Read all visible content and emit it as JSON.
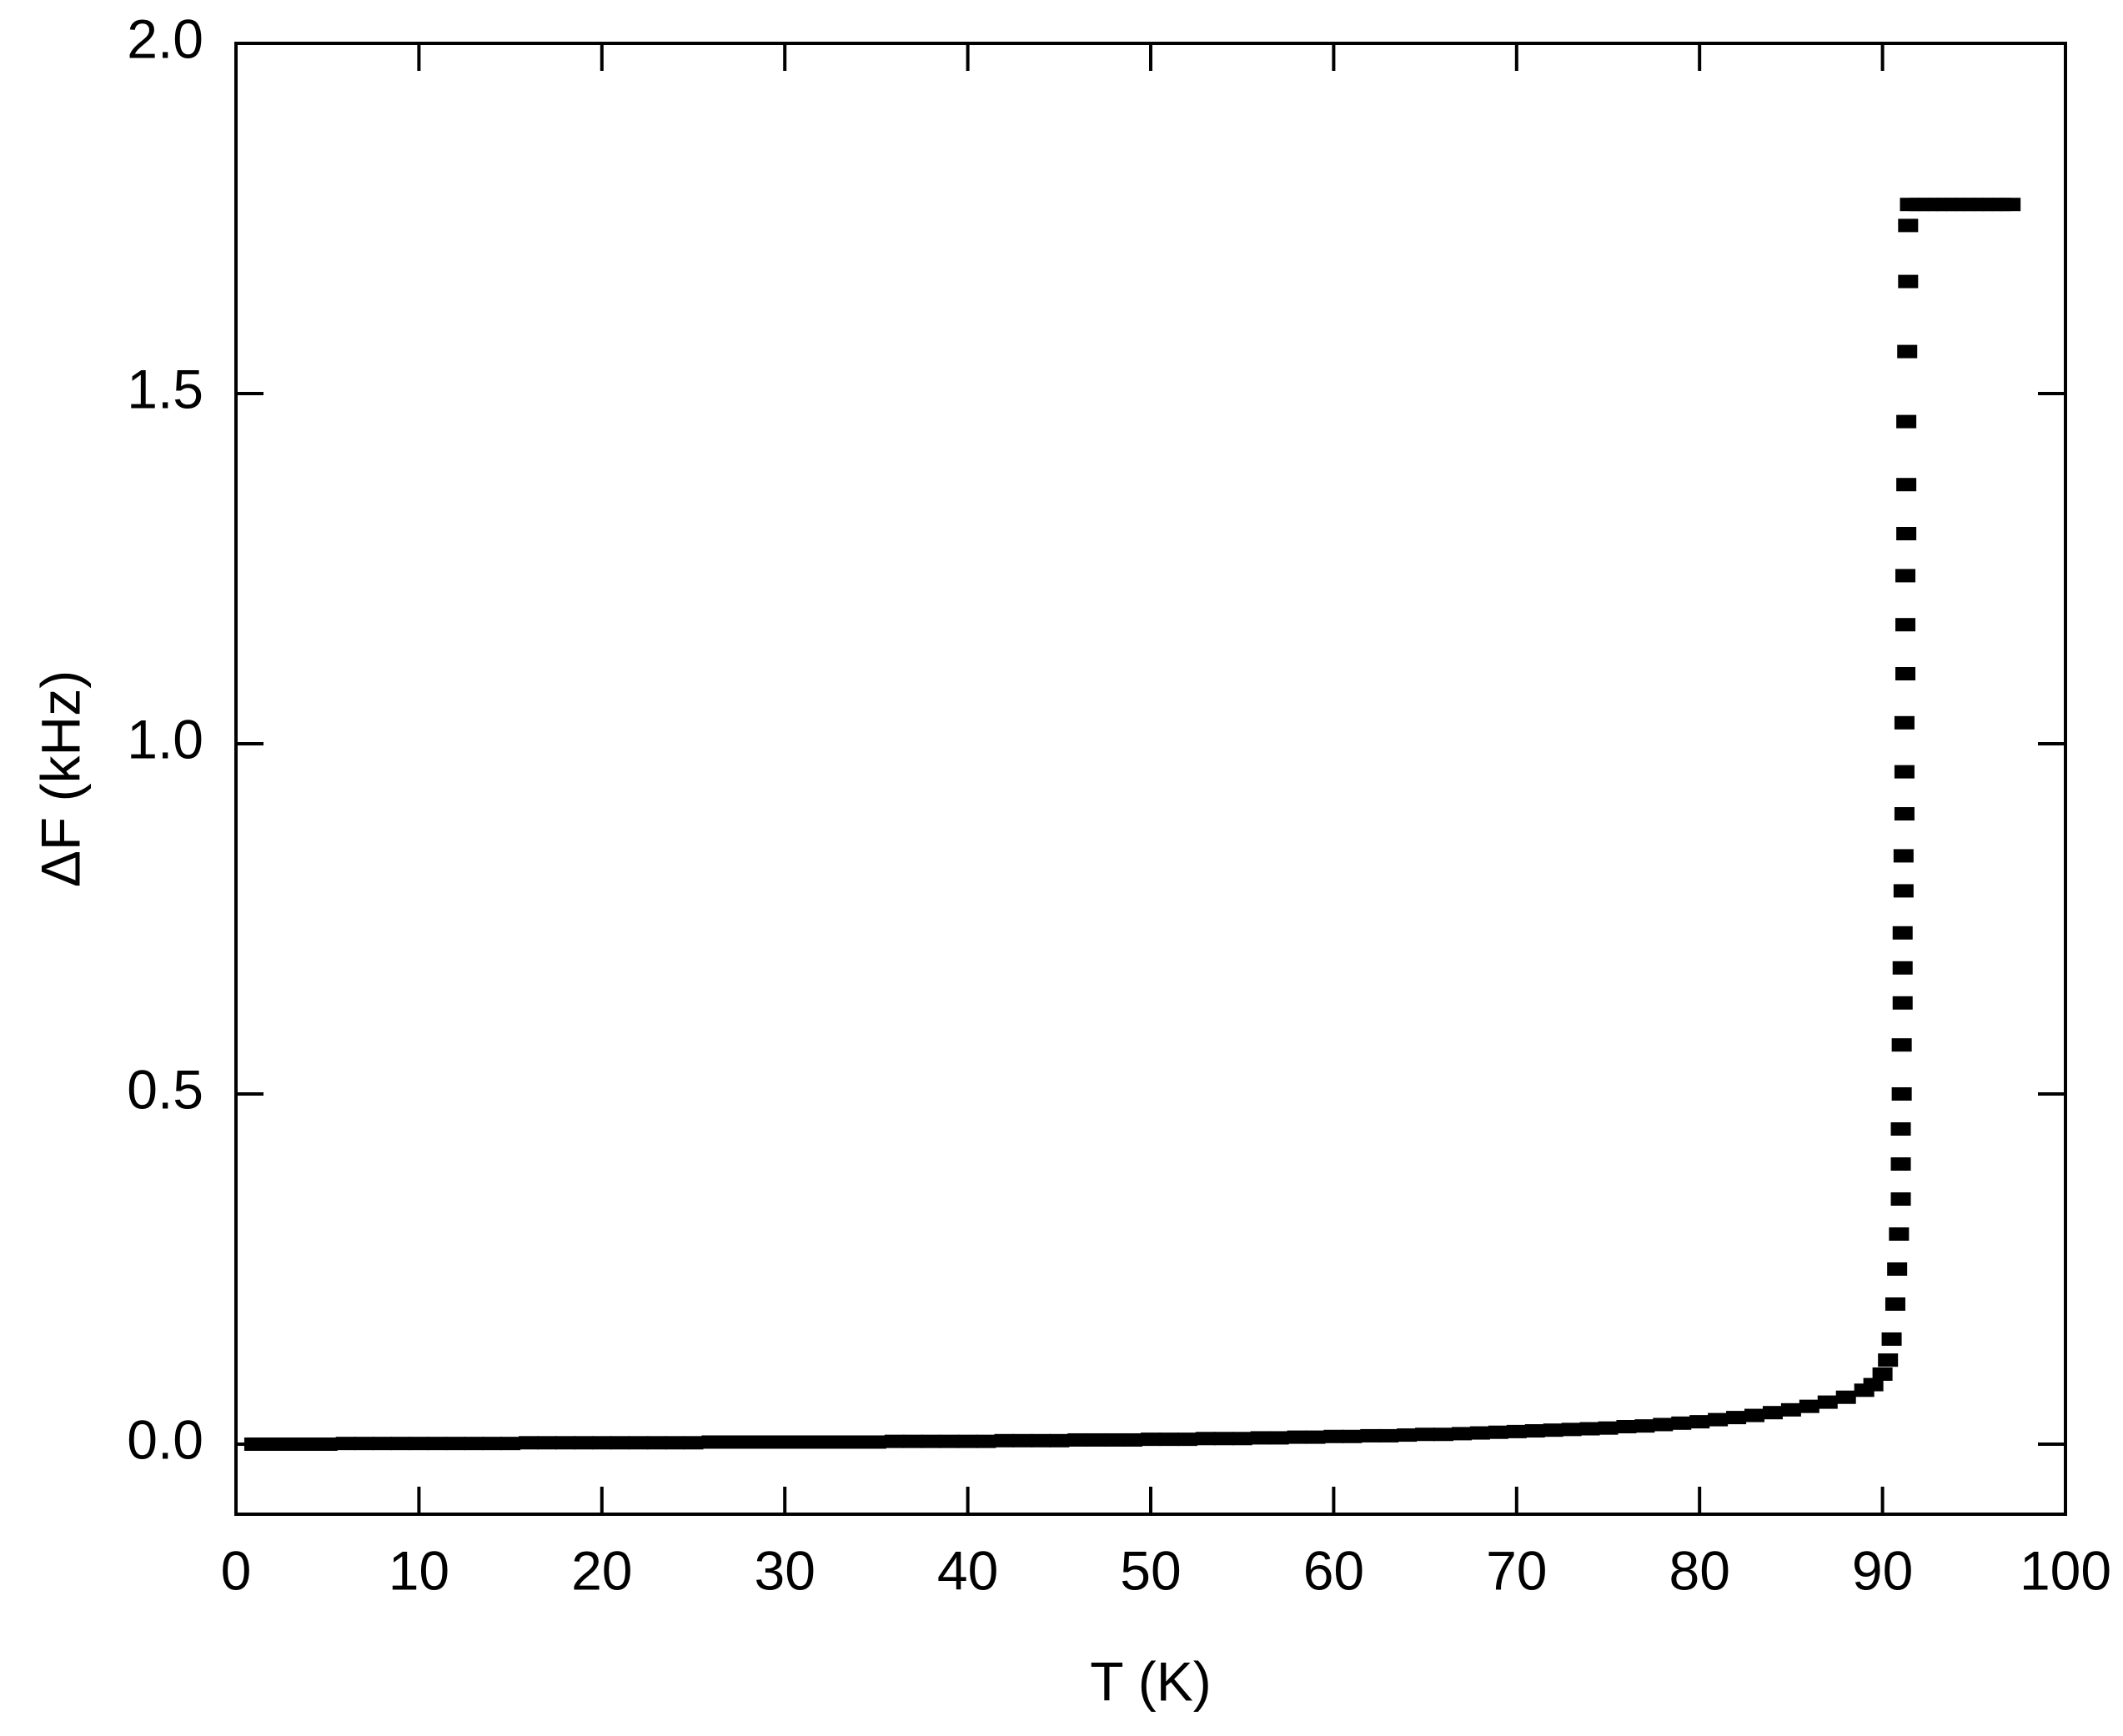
{
  "chart_data": {
    "type": "scatter",
    "x_label": "T (K)",
    "y_label": "ΔF (kHz)",
    "xlim": [
      0,
      100
    ],
    "xticks": [
      0,
      10,
      20,
      30,
      40,
      50,
      60,
      70,
      80,
      90,
      100
    ],
    "ylim": [
      -0.1,
      2.0
    ],
    "yticks": [
      {
        "value": 0,
        "label": "0.0"
      },
      0.5,
      {
        "value": 1,
        "label": "1.0"
      },
      1.5,
      {
        "value": 2,
        "label": "2.0"
      }
    ],
    "color": "#000000",
    "x": [
      1,
      2,
      3,
      4,
      5,
      6,
      7,
      8,
      9,
      10,
      11,
      12,
      13,
      14,
      15,
      16,
      17,
      18,
      19,
      20,
      21,
      22,
      23,
      24,
      25,
      26,
      27,
      28,
      29,
      30,
      31,
      32,
      33,
      34,
      35,
      36,
      37,
      38,
      39,
      40,
      41,
      42,
      43,
      44,
      45,
      46,
      47,
      48,
      49,
      50,
      51,
      52,
      53,
      54,
      55,
      56,
      57,
      58,
      59,
      60,
      61,
      62,
      63,
      64,
      65,
      66,
      67,
      68,
      69,
      70,
      71,
      72,
      73,
      74,
      75,
      76,
      77,
      78,
      79,
      80,
      81,
      82,
      83,
      84,
      85,
      86,
      87,
      88,
      89,
      89.5,
      90,
      90.3,
      90.5,
      90.7,
      90.8,
      90.9,
      91.0,
      91.0,
      91.0,
      91.05,
      91.05,
      91.1,
      91.1,
      91.1,
      91.15,
      91.15,
      91.2,
      91.2,
      91.2,
      91.25,
      91.25,
      91.25,
      91.3,
      91.3,
      91.3,
      91.35,
      91.4,
      91.4,
      91.5,
      92,
      92.5,
      93,
      93.5,
      94,
      94.5,
      95,
      95.5,
      96,
      96.5,
      97
    ],
    "values": [
      0,
      0,
      0,
      0,
      0,
      0.001,
      0.001,
      0.001,
      0.001,
      0.001,
      0.001,
      0.001,
      0.001,
      0.001,
      0.001,
      0.002,
      0.002,
      0.002,
      0.002,
      0.002,
      0.002,
      0.002,
      0.002,
      0.002,
      0.002,
      0.003,
      0.003,
      0.003,
      0.003,
      0.003,
      0.003,
      0.003,
      0.003,
      0.003,
      0.003,
      0.004,
      0.004,
      0.004,
      0.004,
      0.004,
      0.004,
      0.005,
      0.005,
      0.005,
      0.005,
      0.006,
      0.006,
      0.006,
      0.006,
      0.007,
      0.007,
      0.007,
      0.008,
      0.008,
      0.008,
      0.009,
      0.009,
      0.01,
      0.01,
      0.011,
      0.011,
      0.012,
      0.012,
      0.013,
      0.014,
      0.014,
      0.015,
      0.016,
      0.017,
      0.018,
      0.019,
      0.02,
      0.021,
      0.022,
      0.023,
      0.025,
      0.026,
      0.028,
      0.03,
      0.032,
      0.035,
      0.038,
      0.041,
      0.045,
      0.049,
      0.054,
      0.06,
      0.067,
      0.077,
      0.085,
      0.1,
      0.12,
      0.15,
      0.2,
      0.25,
      0.3,
      0.35,
      0.4,
      0.45,
      0.5,
      0.57,
      0.63,
      0.68,
      0.73,
      0.79,
      0.84,
      0.9,
      0.96,
      1.03,
      1.1,
      1.17,
      1.24,
      1.3,
      1.37,
      1.46,
      1.56,
      1.66,
      1.74,
      1.77,
      1.77,
      1.77,
      1.77,
      1.77,
      1.77,
      1.77,
      1.77,
      1.77,
      1.77,
      1.77,
      1.77
    ]
  }
}
